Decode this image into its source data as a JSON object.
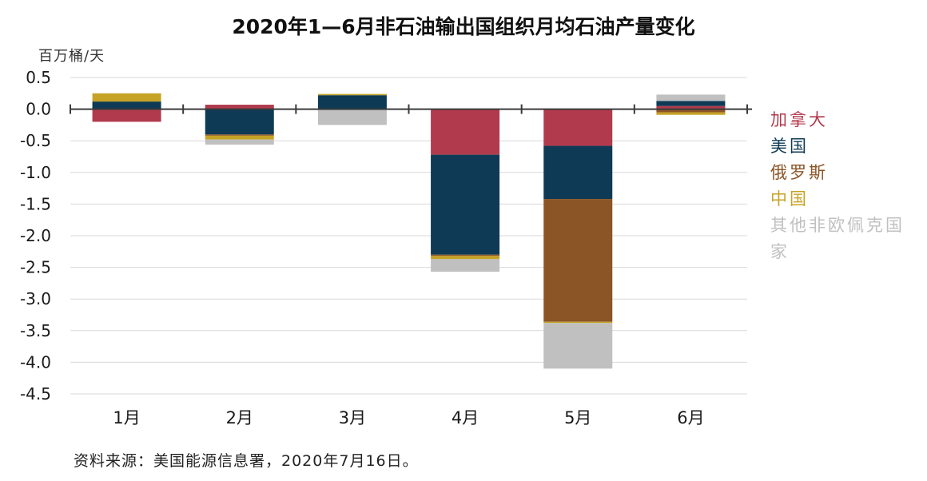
{
  "colors": {
    "canada": "#b23a4d",
    "usa": "#0e3a55",
    "russia": "#8b5526",
    "china": "#c6a326",
    "others": "#c0c0c0",
    "grid": "#d9d9d9",
    "axis": "#3b3b3b"
  },
  "chart_data": {
    "type": "bar",
    "stacked": true,
    "title": "2020年1—6月非石油输出国组织月均石油产量变化",
    "ylabel": "百万桶/天",
    "xlabel": "",
    "ylim": [
      -4.5,
      0.5
    ],
    "yticks": [
      0.5,
      0.0,
      -0.5,
      -1.0,
      -1.5,
      -2.0,
      -2.5,
      -3.0,
      -3.5,
      -4.0,
      -4.5
    ],
    "ytick_labels": [
      "0.5",
      "0.0",
      "-0.5",
      "-1.0",
      "-1.5",
      "-2.0",
      "-2.5",
      "-3.0",
      "-3.5",
      "-4.0",
      "-4.5"
    ],
    "categories": [
      "1月",
      "2月",
      "3月",
      "4月",
      "5月",
      "6月"
    ],
    "grid": true,
    "legend_position": "right",
    "series": [
      {
        "name": "加拿大",
        "key": "canada",
        "values": [
          -0.2,
          0.07,
          0.0,
          -0.72,
          -0.58,
          0.05
        ]
      },
      {
        "name": "美国",
        "key": "usa",
        "values": [
          0.12,
          -0.4,
          0.22,
          -1.58,
          -0.84,
          0.08
        ]
      },
      {
        "name": "俄罗斯",
        "key": "russia",
        "values": [
          0.0,
          -0.02,
          0.0,
          -0.02,
          -1.94,
          -0.05
        ]
      },
      {
        "name": "中国",
        "key": "china",
        "values": [
          0.13,
          -0.06,
          0.02,
          -0.05,
          -0.02,
          -0.04
        ]
      },
      {
        "name": "其他非欧佩克国家",
        "key": "others",
        "values": [
          0.0,
          -0.08,
          -0.25,
          -0.2,
          -0.72,
          0.1
        ]
      }
    ],
    "source": "资料来源：美国能源信息署，2020年7月16日。"
  },
  "legend": [
    {
      "label": "加拿大",
      "key": "canada"
    },
    {
      "label": "美国",
      "key": "usa"
    },
    {
      "label": "俄罗斯",
      "key": "russia"
    },
    {
      "label": "中国",
      "key": "china"
    },
    {
      "label": "其他非欧佩克国家",
      "key": "others"
    }
  ]
}
